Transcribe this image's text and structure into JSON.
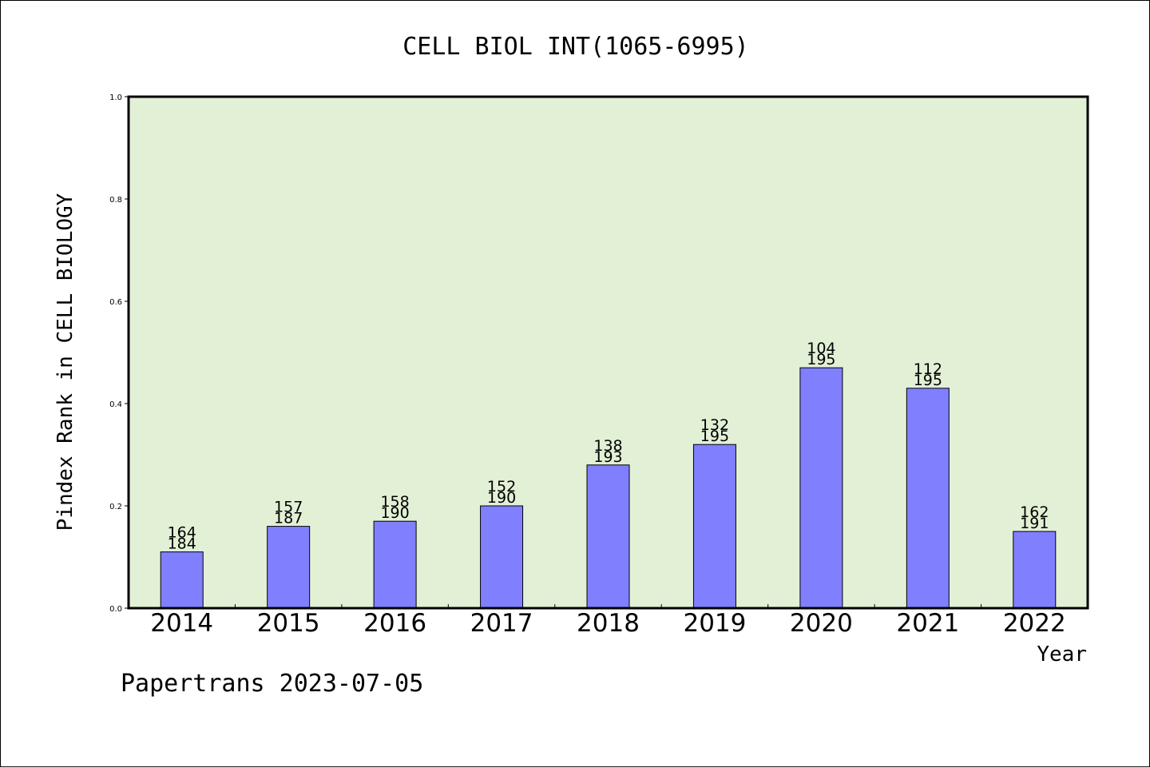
{
  "chart_data": {
    "type": "bar",
    "title": "CELL BIOL INT(1065-6995)",
    "xlabel": "Year",
    "ylabel": "Pindex Rank in CELL BIOLOGY",
    "ylim": [
      0,
      1.0
    ],
    "yticks": [
      "0.0",
      "0.2",
      "0.4",
      "0.6",
      "0.8",
      "1.0"
    ],
    "categories": [
      "2014",
      "2015",
      "2016",
      "2017",
      "2018",
      "2019",
      "2020",
      "2021",
      "2022"
    ],
    "values": [
      0.11,
      0.16,
      0.17,
      0.2,
      0.28,
      0.32,
      0.47,
      0.43,
      0.15
    ],
    "annotations": [
      {
        "rank": "164",
        "total": "184"
      },
      {
        "rank": "157",
        "total": "187"
      },
      {
        "rank": "158",
        "total": "190"
      },
      {
        "rank": "152",
        "total": "190"
      },
      {
        "rank": "138",
        "total": "193"
      },
      {
        "rank": "132",
        "total": "195"
      },
      {
        "rank": "104",
        "total": "195"
      },
      {
        "rank": "112",
        "total": "195"
      },
      {
        "rank": "162",
        "total": "191"
      }
    ],
    "grid": false,
    "plot_background": "#e2f0d6",
    "bar_color": "#8080ff"
  },
  "footer": "Papertrans 2023-07-05"
}
